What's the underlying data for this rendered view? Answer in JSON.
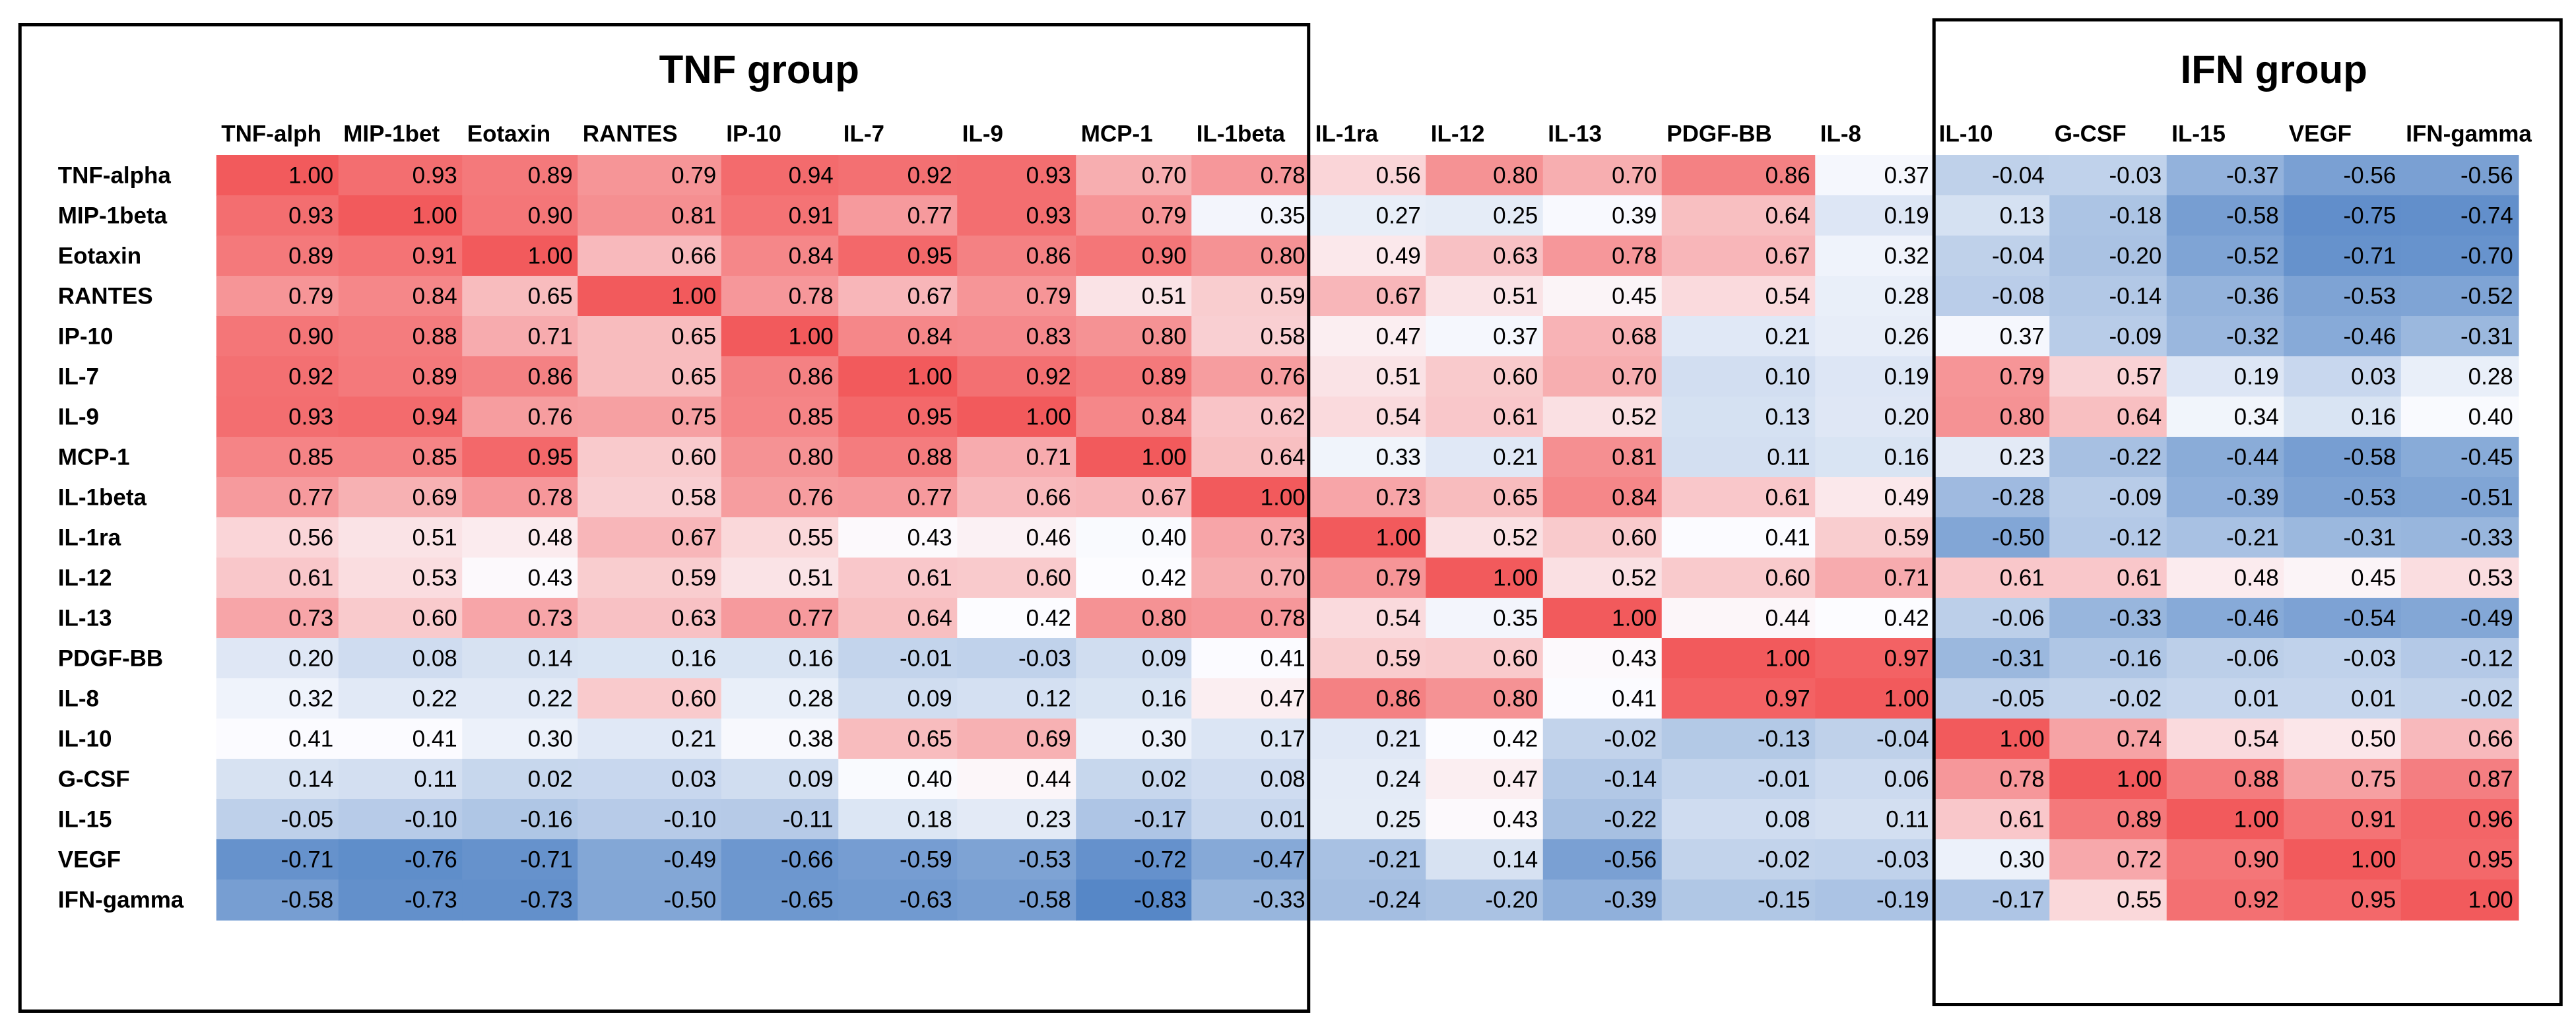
{
  "groups": [
    "TNF group",
    "IFN group"
  ],
  "table": {
    "columns": [
      "TNF-alph",
      "MIP-1bet",
      "Eotaxin",
      "RANTES",
      "IP-10",
      "IL-7",
      "IL-9",
      "MCP-1",
      "IL-1beta",
      "IL-1ra",
      "IL-12",
      "IL-13",
      "PDGF-BB",
      "IL-8",
      "IL-10",
      "G-CSF",
      "IL-15",
      "VEGF",
      "IFN-gamma"
    ],
    "rows": [
      {
        "label": "TNF-alpha",
        "cells": [
          "1.00",
          "0.93",
          "0.89",
          "0.79",
          "0.94",
          "0.92",
          "0.93",
          "0.70",
          "0.78",
          "0.56",
          "0.80",
          "0.70",
          "0.86",
          "0.37",
          "-0.04",
          "-0.03",
          "-0.37",
          "-0.56",
          "-0.56"
        ]
      },
      {
        "label": "MIP-1beta",
        "cells": [
          "0.93",
          "1.00",
          "0.90",
          "0.81",
          "0.91",
          "0.77",
          "0.93",
          "0.79",
          "0.35",
          "0.27",
          "0.25",
          "0.39",
          "0.64",
          "0.19",
          "0.13",
          "-0.18",
          "-0.58",
          "-0.75",
          "-0.74"
        ]
      },
      {
        "label": "Eotaxin",
        "cells": [
          "0.89",
          "0.91",
          "1.00",
          "0.66",
          "0.84",
          "0.95",
          "0.86",
          "0.90",
          "0.80",
          "0.49",
          "0.63",
          "0.78",
          "0.67",
          "0.32",
          "-0.04",
          "-0.20",
          "-0.52",
          "-0.71",
          "-0.70"
        ]
      },
      {
        "label": "RANTES",
        "cells": [
          "0.79",
          "0.84",
          "0.65",
          "1.00",
          "0.78",
          "0.67",
          "0.79",
          "0.51",
          "0.59",
          "0.67",
          "0.51",
          "0.45",
          "0.54",
          "0.28",
          "-0.08",
          "-0.14",
          "-0.36",
          "-0.53",
          "-0.52"
        ]
      },
      {
        "label": "IP-10",
        "cells": [
          "0.90",
          "0.88",
          "0.71",
          "0.65",
          "1.00",
          "0.84",
          "0.83",
          "0.80",
          "0.58",
          "0.47",
          "0.37",
          "0.68",
          "0.21",
          "0.26",
          "0.37",
          "-0.09",
          "-0.32",
          "-0.46",
          "-0.31"
        ]
      },
      {
        "label": "IL-7",
        "cells": [
          "0.92",
          "0.89",
          "0.86",
          "0.65",
          "0.86",
          "1.00",
          "0.92",
          "0.89",
          "0.76",
          "0.51",
          "0.60",
          "0.70",
          "0.10",
          "0.19",
          "0.79",
          "0.57",
          "0.19",
          "0.03",
          "0.28"
        ]
      },
      {
        "label": "IL-9",
        "cells": [
          "0.93",
          "0.94",
          "0.76",
          "0.75",
          "0.85",
          "0.95",
          "1.00",
          "0.84",
          "0.62",
          "0.54",
          "0.61",
          "0.52",
          "0.13",
          "0.20",
          "0.80",
          "0.64",
          "0.34",
          "0.16",
          "0.40"
        ]
      },
      {
        "label": "MCP-1",
        "cells": [
          "0.85",
          "0.85",
          "0.95",
          "0.60",
          "0.80",
          "0.88",
          "0.71",
          "1.00",
          "0.64",
          "0.33",
          "0.21",
          "0.81",
          "0.11",
          "0.16",
          "0.23",
          "-0.22",
          "-0.44",
          "-0.58",
          "-0.45"
        ]
      },
      {
        "label": "IL-1beta",
        "cells": [
          "0.77",
          "0.69",
          "0.78",
          "0.58",
          "0.76",
          "0.77",
          "0.66",
          "0.67",
          "1.00",
          "0.73",
          "0.65",
          "0.84",
          "0.61",
          "0.49",
          "-0.28",
          "-0.09",
          "-0.39",
          "-0.53",
          "-0.51"
        ]
      },
      {
        "label": "IL-1ra",
        "cells": [
          "0.56",
          "0.51",
          "0.48",
          "0.67",
          "0.55",
          "0.43",
          "0.46",
          "0.40",
          "0.73",
          "1.00",
          "0.52",
          "0.60",
          "0.41",
          "0.59",
          "-0.50",
          "-0.12",
          "-0.21",
          "-0.31",
          "-0.33"
        ]
      },
      {
        "label": "IL-12",
        "cells": [
          "0.61",
          "0.53",
          "0.43",
          "0.59",
          "0.51",
          "0.61",
          "0.60",
          "0.42",
          "0.70",
          "0.79",
          "1.00",
          "0.52",
          "0.60",
          "0.71",
          "0.61",
          "0.61",
          "0.48",
          "0.45",
          "0.53"
        ]
      },
      {
        "label": "IL-13",
        "cells": [
          "0.73",
          "0.60",
          "0.73",
          "0.63",
          "0.77",
          "0.64",
          "0.42",
          "0.80",
          "0.78",
          "0.54",
          "0.35",
          "1.00",
          "0.44",
          "0.42",
          "-0.06",
          "-0.33",
          "-0.46",
          "-0.54",
          "-0.49"
        ]
      },
      {
        "label": "PDGF-BB",
        "cells": [
          "0.20",
          "0.08",
          "0.14",
          "0.16",
          "0.16",
          "-0.01",
          "-0.03",
          "0.09",
          "0.41",
          "0.59",
          "0.60",
          "0.43",
          "1.00",
          "0.97",
          "-0.31",
          "-0.16",
          "-0.06",
          "-0.03",
          "-0.12"
        ]
      },
      {
        "label": "IL-8",
        "cells": [
          "0.32",
          "0.22",
          "0.22",
          "0.60",
          "0.28",
          "0.09",
          "0.12",
          "0.16",
          "0.47",
          "0.86",
          "0.80",
          "0.41",
          "0.97",
          "1.00",
          "-0.05",
          "-0.02",
          "0.01",
          "0.01",
          "-0.02"
        ]
      },
      {
        "label": "IL-10",
        "cells": [
          "0.41",
          "0.41",
          "0.30",
          "0.21",
          "0.38",
          "0.65",
          "0.69",
          "0.30",
          "0.17",
          "0.21",
          "0.42",
          "-0.02",
          "-0.13",
          "-0.04",
          "1.00",
          "0.74",
          "0.54",
          "0.50",
          "0.66"
        ]
      },
      {
        "label": "G-CSF",
        "cells": [
          "0.14",
          "0.11",
          "0.02",
          "0.03",
          "0.09",
          "0.40",
          "0.44",
          "0.02",
          "0.08",
          "0.24",
          "0.47",
          "-0.14",
          "-0.01",
          "0.06",
          "0.78",
          "1.00",
          "0.88",
          "0.75",
          "0.87"
        ]
      },
      {
        "label": "IL-15",
        "cells": [
          "-0.05",
          "-0.10",
          "-0.16",
          "-0.10",
          "-0.11",
          "0.18",
          "0.23",
          "-0.17",
          "0.01",
          "0.25",
          "0.43",
          "-0.22",
          "0.08",
          "0.11",
          "0.61",
          "0.89",
          "1.00",
          "0.91",
          "0.96"
        ]
      },
      {
        "label": "VEGF",
        "cells": [
          "-0.71",
          "-0.76",
          "-0.71",
          "-0.49",
          "-0.66",
          "-0.59",
          "-0.53",
          "-0.72",
          "-0.47",
          "-0.21",
          "0.14",
          "-0.56",
          "-0.02",
          "-0.03",
          "0.30",
          "0.72",
          "0.90",
          "1.00",
          "0.95"
        ]
      },
      {
        "label": "IFN-gamma",
        "cells": [
          "-0.58",
          "-0.73",
          "-0.73",
          "-0.50",
          "-0.65",
          "-0.63",
          "-0.58",
          "-0.83",
          "-0.33",
          "-0.24",
          "-0.20",
          "-0.39",
          "-0.15",
          "-0.19",
          "-0.17",
          "0.55",
          "0.92",
          "0.95",
          "1.00"
        ]
      }
    ]
  }
}
